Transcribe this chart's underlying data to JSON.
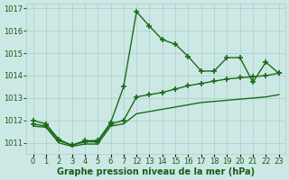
{
  "background_color": "#cce8e4",
  "grid_color": "#aacccc",
  "line_color": "#1a6b1a",
  "marker": "+",
  "marker_size": 4,
  "marker_lw": 1.2,
  "line_width": 1.0,
  "xtick_labels": [
    "0",
    "1",
    "2",
    "3",
    "4",
    "5",
    "6",
    "7",
    "12",
    "13",
    "14",
    "15",
    "16",
    "17",
    "18",
    "19",
    "20",
    "21",
    "22",
    "23"
  ],
  "series1_y": [
    1012.0,
    1011.85,
    1011.15,
    1010.9,
    1011.1,
    1011.1,
    1011.9,
    1013.5,
    1016.85,
    1016.2,
    1015.6,
    1015.4,
    1014.85,
    1014.2,
    1014.2,
    1014.8,
    1014.8,
    1013.7,
    1014.6,
    1014.1
  ],
  "series1_has_marker": true,
  "series2_y": [
    1011.85,
    1011.75,
    1011.1,
    1010.9,
    1011.05,
    1011.05,
    1011.85,
    1012.0,
    1013.05,
    1013.15,
    1013.25,
    1013.4,
    1013.55,
    1013.65,
    1013.75,
    1013.85,
    1013.9,
    1013.95,
    1014.0,
    1014.1
  ],
  "series2_has_marker": true,
  "series3_y": [
    1011.75,
    1011.7,
    1011.0,
    1010.85,
    1010.95,
    1010.95,
    1011.75,
    1011.85,
    1012.3,
    1012.4,
    1012.5,
    1012.6,
    1012.7,
    1012.8,
    1012.85,
    1012.9,
    1012.95,
    1013.0,
    1013.05,
    1013.15
  ],
  "series3_has_marker": false,
  "ylim": [
    1010.5,
    1017.2
  ],
  "yticks": [
    1011,
    1012,
    1013,
    1014,
    1015,
    1016,
    1017
  ],
  "xlabel": "Graphe pression niveau de la mer (hPa)",
  "axis_fontsize": 6,
  "label_fontsize": 7
}
